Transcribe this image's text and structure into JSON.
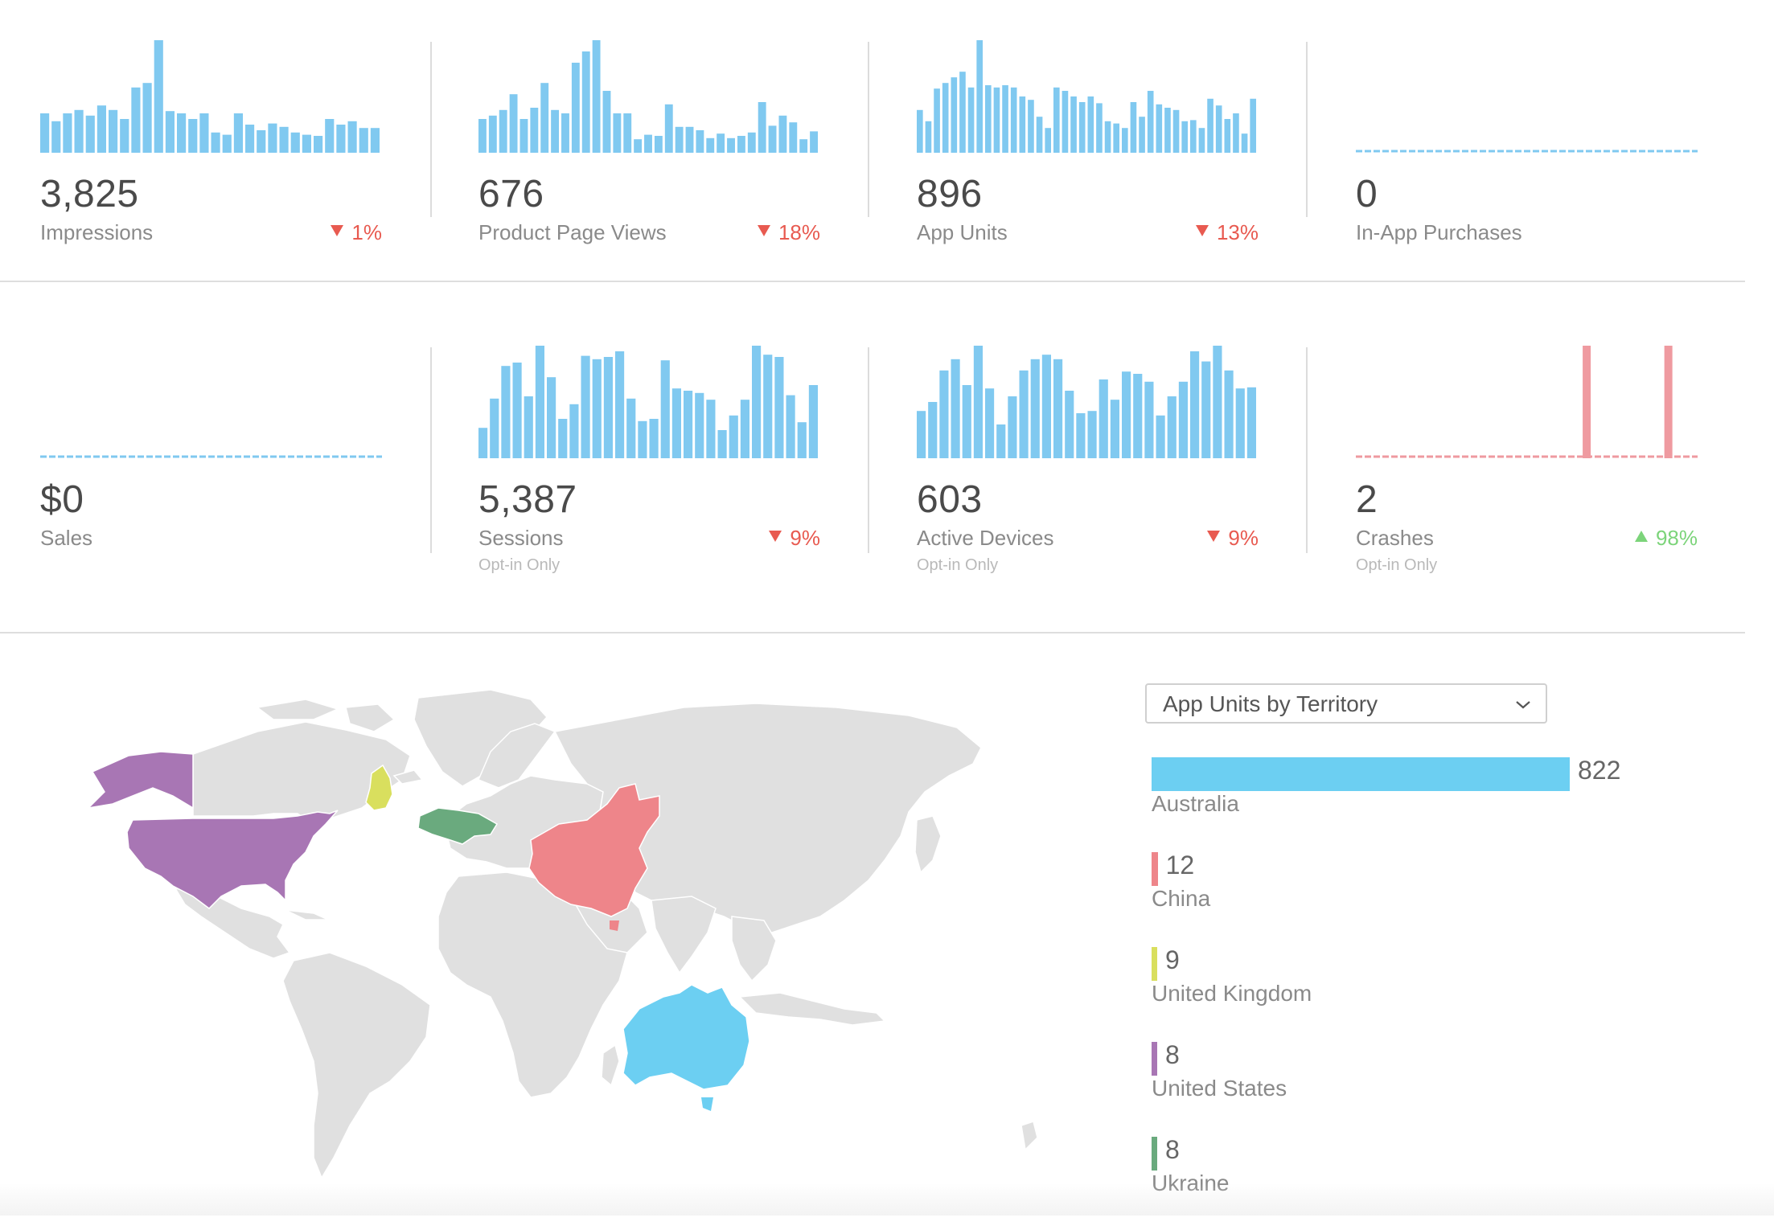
{
  "colors": {
    "bar_blue": "#80c9f0",
    "bar_pink": "#ef9aa0",
    "down_red": "#e85a50",
    "up_green": "#7cd47a",
    "map_land": "#e0e0e0",
    "australia": "#6ccff2",
    "china": "#ee858a",
    "united_kingdom": "#d9df5e",
    "united_states": "#a876b4",
    "ukraine": "#6aaa7e"
  },
  "metrics": [
    {
      "value": "3,825",
      "label": "Impressions",
      "sub": "",
      "change": "1%",
      "direction": "down",
      "chart": "bars",
      "color": "#80c9f0",
      "series": [
        35,
        28,
        35,
        38,
        33,
        42,
        38,
        30,
        58,
        62,
        100,
        37,
        35,
        30,
        35,
        18,
        16,
        35,
        25,
        20,
        26,
        23,
        18,
        16,
        15,
        30,
        25,
        28,
        22,
        22
      ]
    },
    {
      "value": "676",
      "label": "Product Page Views",
      "sub": "",
      "change": "18%",
      "direction": "down",
      "chart": "bars",
      "color": "#80c9f0",
      "series": [
        30,
        33,
        38,
        52,
        30,
        40,
        62,
        38,
        35,
        80,
        90,
        100,
        55,
        35,
        35,
        12,
        16,
        15,
        43,
        23,
        23,
        20,
        13,
        17,
        13,
        15,
        18,
        45,
        24,
        33,
        27,
        12,
        19
      ]
    },
    {
      "value": "896",
      "label": "App Units",
      "sub": "",
      "change": "13%",
      "direction": "down",
      "chart": "bars",
      "color": "#80c9f0",
      "series": [
        38,
        28,
        57,
        62,
        67,
        72,
        58,
        100,
        60,
        58,
        60,
        58,
        50,
        47,
        32,
        22,
        58,
        55,
        50,
        45,
        50,
        44,
        28,
        26,
        22,
        45,
        32,
        55,
        43,
        40,
        38,
        28,
        29,
        22,
        48,
        42,
        30,
        35,
        17,
        48
      ]
    },
    {
      "value": "0",
      "label": "In-App Purchases",
      "sub": "",
      "change": "",
      "direction": "",
      "chart": "flat",
      "color": "#80c9f0",
      "series": []
    },
    {
      "value": "$0",
      "label": "Sales",
      "sub": "",
      "change": "",
      "direction": "",
      "chart": "flat",
      "color": "#80c9f0",
      "series": []
    },
    {
      "value": "5,387",
      "label": "Sessions",
      "sub": "Opt-in Only",
      "change": "9%",
      "direction": "down",
      "chart": "bars",
      "color": "#80c9f0",
      "series": [
        27,
        53,
        82,
        85,
        55,
        100,
        72,
        35,
        48,
        91,
        88,
        90,
        95,
        53,
        33,
        35,
        87,
        62,
        60,
        58,
        52,
        25,
        38,
        52,
        100,
        92,
        90,
        56,
        32,
        65
      ]
    },
    {
      "value": "603",
      "label": "Active Devices",
      "sub": "Opt-in Only",
      "change": "9%",
      "direction": "down",
      "chart": "bars",
      "color": "#80c9f0",
      "series": [
        42,
        50,
        78,
        88,
        65,
        100,
        62,
        30,
        55,
        78,
        88,
        92,
        88,
        60,
        40,
        42,
        70,
        52,
        77,
        75,
        68,
        38,
        55,
        68,
        95,
        86,
        100,
        78,
        62,
        63
      ]
    },
    {
      "value": "2",
      "label": "Crashes",
      "sub": "Opt-in Only",
      "change": "98%",
      "direction": "up",
      "chart": "spikes",
      "color": "#ef9aa0",
      "series": [
        0,
        0,
        0,
        0,
        0,
        0,
        0,
        0,
        0,
        0,
        0,
        0,
        0,
        0,
        0,
        0,
        0,
        0,
        0,
        0,
        0,
        0,
        0,
        0,
        0,
        0,
        0,
        0,
        0,
        0,
        0,
        0,
        0,
        0,
        0,
        0,
        0,
        0,
        0,
        0,
        0,
        0,
        0,
        0,
        0,
        0,
        0,
        0,
        0,
        0,
        0,
        0,
        0,
        0,
        0,
        0,
        0,
        0,
        0,
        0,
        0,
        0,
        0,
        0,
        0,
        0,
        0,
        0,
        0,
        0,
        0,
        0,
        0,
        0,
        0,
        100,
        0,
        0,
        0,
        0,
        0,
        0,
        0,
        0,
        0,
        0,
        0,
        0,
        0,
        0,
        0,
        0,
        0,
        0,
        0,
        0,
        0,
        0,
        0,
        0,
        0,
        0,
        100,
        0,
        0,
        0,
        0,
        0,
        0,
        0,
        0,
        0,
        0
      ]
    }
  ],
  "territory": {
    "selector_label": "App Units by Territory",
    "max": 822,
    "items": [
      {
        "value": 822,
        "display": "822",
        "name": "Australia",
        "color": "#6ccff2"
      },
      {
        "value": 12,
        "display": "12",
        "name": "China",
        "color": "#ee858a"
      },
      {
        "value": 9,
        "display": "9",
        "name": "United Kingdom",
        "color": "#d9df5e"
      },
      {
        "value": 8,
        "display": "8",
        "name": "United States",
        "color": "#a876b4"
      },
      {
        "value": 8,
        "display": "8",
        "name": "Ukraine",
        "color": "#6aaa7e"
      }
    ]
  }
}
